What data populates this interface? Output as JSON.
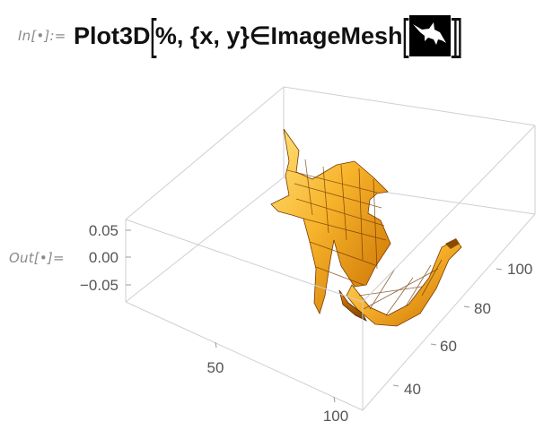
{
  "input": {
    "prompt_label": "In[•]:=",
    "code_part1": "Plot3D",
    "code_part2": "%, {x, y}∈ImageMesh",
    "thumbnail_icon": "swordfish-silhouette"
  },
  "output": {
    "prompt_label": "Out[•]=",
    "plot": {
      "type": "3d-surface",
      "z_ticks": [
        "0.05",
        "0.00",
        "−0.05"
      ],
      "x_ticks": [
        "50",
        "100"
      ],
      "y_ticks": [
        "40",
        "60",
        "80",
        "100"
      ],
      "surface_colors": {
        "light": "#ffd24a",
        "mid": "#f5a623",
        "dark": "#a85a00"
      }
    }
  }
}
